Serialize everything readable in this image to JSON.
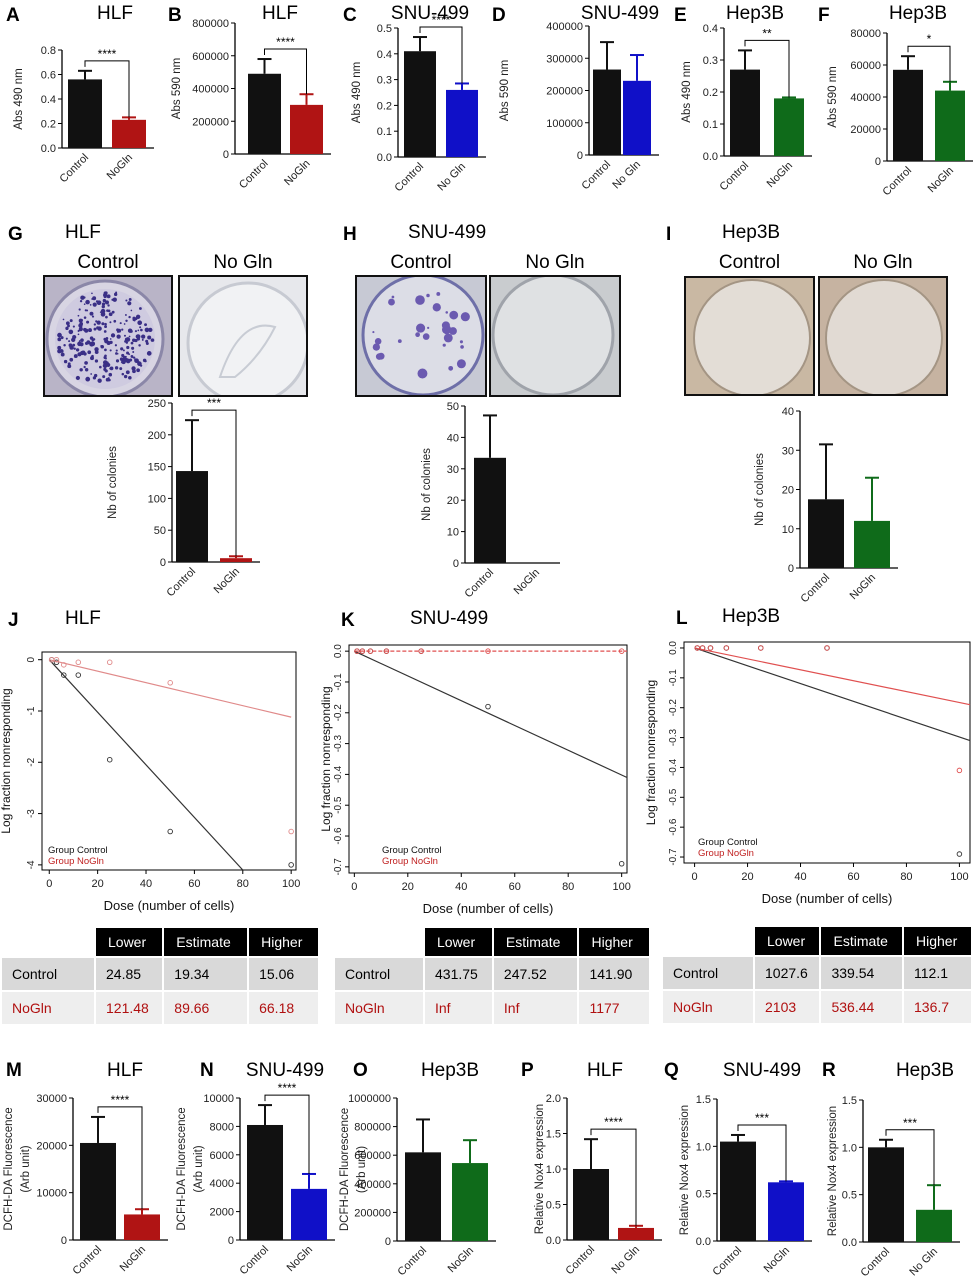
{
  "colors": {
    "black": "#111111",
    "red": "#b01414",
    "blue": "#1010c8",
    "green": "#0f6b1a",
    "lightred": "#e08a8a"
  },
  "top_row": [
    {
      "letter": "A",
      "title": "HLF",
      "ylabel": "Abs 490 nm",
      "ticks": [
        "0.0",
        "0.2",
        "0.4",
        "0.6",
        "0.8"
      ],
      "cats": [
        "Control",
        "NoGln"
      ],
      "sig": "****"
    },
    {
      "letter": "B",
      "title": "HLF",
      "ylabel": "Abs 590 nm",
      "ticks": [
        "0",
        "200000",
        "400000",
        "600000",
        "800000"
      ],
      "cats": [
        "Control",
        "NoGln"
      ],
      "sig": "****"
    },
    {
      "letter": "C",
      "title": "SNU-499",
      "ylabel": "Abs 490 nm",
      "ticks": [
        "0.0",
        "0.1",
        "0.2",
        "0.3",
        "0.4",
        "0.5"
      ],
      "cats": [
        "Control",
        "No Gln"
      ],
      "sig": "****"
    },
    {
      "letter": "D",
      "title": "SNU-499",
      "ylabel": "Abs 590 nm",
      "ticks": [
        "0",
        "100000",
        "200000",
        "300000",
        "400000"
      ],
      "cats": [
        "Control",
        "No Gln"
      ],
      "sig": ""
    },
    {
      "letter": "E",
      "title": "Hep3B",
      "ylabel": "Abs 490 nm",
      "ticks": [
        "0.0",
        "0.1",
        "0.2",
        "0.3",
        "0.4"
      ],
      "cats": [
        "Control",
        "NoGln"
      ],
      "sig": "**"
    },
    {
      "letter": "F",
      "title": "Hep3B",
      "ylabel": "Abs 590 nm",
      "ticks": [
        "0",
        "20000",
        "40000",
        "60000",
        "80000"
      ],
      "cats": [
        "Control",
        "NoGln"
      ],
      "sig": "*"
    }
  ],
  "colony": [
    {
      "letter": "G",
      "title": "HLF",
      "left_label": "Control",
      "right_label": "No Gln",
      "ylabel": "Nb of colonies",
      "ticks": [
        "0",
        "50",
        "100",
        "150",
        "200",
        "250"
      ],
      "cats": [
        "Control",
        "NoGln"
      ],
      "sig": "***"
    },
    {
      "letter": "H",
      "title": "SNU-499",
      "left_label": "Control",
      "right_label": "No Gln",
      "ylabel": "Nb of colonies",
      "ticks": [
        "0",
        "10",
        "20",
        "30",
        "40",
        "50"
      ],
      "cats": [
        "Control",
        "NoGln"
      ],
      "sig": ""
    },
    {
      "letter": "I",
      "title": "Hep3B",
      "left_label": "Control",
      "right_label": "No Gln",
      "ylabel": "Nb of colonies",
      "ticks": [
        "0",
        "10",
        "20",
        "30",
        "40"
      ],
      "cats": [
        "Control",
        "NoGln"
      ],
      "sig": ""
    }
  ],
  "lda": [
    {
      "letter": "J",
      "title": "HLF",
      "ylabel": "Log fraction nonresponding",
      "xlabel": "Dose (number of cells)",
      "yticks": [
        "0",
        "-1",
        "-2",
        "-3",
        "-4"
      ],
      "xticks": [
        "0",
        "20",
        "40",
        "60",
        "80",
        "100"
      ],
      "legend": [
        "Group Control",
        "Group NoGln"
      ]
    },
    {
      "letter": "K",
      "title": "SNU-499",
      "ylabel": "Log fraction nonresponding",
      "xlabel": "Dose (number of cells)",
      "yticks": [
        "0.0",
        "-0.1",
        "-0.2",
        "-0.3",
        "-0.4",
        "-0.5",
        "-0.6",
        "-0.7"
      ],
      "xticks": [
        "0",
        "20",
        "40",
        "60",
        "80",
        "100"
      ],
      "legend": [
        "Group Control",
        "Group NoGln"
      ]
    },
    {
      "letter": "L",
      "title": "Hep3B",
      "ylabel": "Log fraction nonresponding",
      "xlabel": "Dose (number of cells)",
      "yticks": [
        "0.0",
        "-0.1",
        "-0.2",
        "-0.3",
        "-0.4",
        "-0.5",
        "-0.6",
        "-0.7"
      ],
      "xticks": [
        "0",
        "20",
        "40",
        "60",
        "80",
        "100"
      ],
      "legend": [
        "Group Control",
        "Group NoGln"
      ]
    }
  ],
  "tables": [
    {
      "headers": [
        "Lower",
        "Estimate",
        "Higher"
      ],
      "rows": [
        {
          "label": "Control",
          "vals": [
            "24.85",
            "19.34",
            "15.06"
          ]
        },
        {
          "label": "NoGln",
          "vals": [
            "121.48",
            "89.66",
            "66.18"
          ]
        }
      ]
    },
    {
      "headers": [
        "Lower",
        "Estimate",
        "Higher"
      ],
      "rows": [
        {
          "label": "Control",
          "vals": [
            "431.75",
            "247.52",
            "141.90"
          ]
        },
        {
          "label": "NoGln",
          "vals": [
            "Inf",
            "Inf",
            "1177"
          ]
        }
      ]
    },
    {
      "headers": [
        "Lower",
        "Estimate",
        "Higher"
      ],
      "rows": [
        {
          "label": "Control",
          "vals": [
            "1027.6",
            "339.54",
            "112.1"
          ]
        },
        {
          "label": "NoGln",
          "vals": [
            "2103",
            "536.44",
            "136.7"
          ]
        }
      ]
    }
  ],
  "bottom_row": [
    {
      "letter": "M",
      "title": "HLF",
      "ylabel": "DCFH-DA Fluorescence",
      "ylabel2": "(Arb unit)",
      "ticks": [
        "0",
        "10000",
        "20000",
        "30000"
      ],
      "cats": [
        "Control",
        "NoGln"
      ],
      "sig": "****"
    },
    {
      "letter": "N",
      "title": "SNU-499",
      "ylabel": "DCFH-DA Fluorescence",
      "ylabel2": "(Arb unit)",
      "ticks": [
        "0",
        "2000",
        "4000",
        "6000",
        "8000",
        "10000"
      ],
      "cats": [
        "Control",
        "NoGln"
      ],
      "sig": "****"
    },
    {
      "letter": "O",
      "title": "Hep3B",
      "ylabel": "DCFH-DA Fluorescence",
      "ylabel2": "(Arb unit)",
      "ticks": [
        "0",
        "200000",
        "400000",
        "600000",
        "800000",
        "1000000"
      ],
      "cats": [
        "Control",
        "NoGln"
      ],
      "sig": ""
    },
    {
      "letter": "P",
      "title": "HLF",
      "ylabel": "Relative Nox4 expression",
      "ylabel2": "",
      "ticks": [
        "0.0",
        "0.5",
        "1.0",
        "1.5",
        "2.0"
      ],
      "cats": [
        "Control",
        "No Gln"
      ],
      "sig": "****"
    },
    {
      "letter": "Q",
      "title": "SNU-499",
      "ylabel": "Relative Nox4 expression",
      "ylabel2": "",
      "ticks": [
        "0.0",
        "0.5",
        "1.0",
        "1.5"
      ],
      "cats": [
        "Control",
        "NoGln"
      ],
      "sig": "***"
    },
    {
      "letter": "R",
      "title": "Hep3B",
      "ylabel": "Relative Nox4 expression",
      "ylabel2": "",
      "ticks": [
        "0.0",
        "0.5",
        "1.0",
        "1.5"
      ],
      "cats": [
        "Control",
        "No Gln"
      ],
      "sig": "***"
    }
  ],
  "chart_data": [
    {
      "type": "bar",
      "id": "A",
      "title": "HLF",
      "ylabel": "Abs 490 nm",
      "categories": [
        "Control",
        "NoGln"
      ],
      "values": [
        0.56,
        0.23
      ],
      "errors": [
        0.07,
        0.02
      ],
      "ylim": [
        0,
        0.8
      ],
      "colors": [
        "#111111",
        "#b01414"
      ]
    },
    {
      "type": "bar",
      "id": "B",
      "title": "HLF",
      "ylabel": "Abs 590 nm",
      "categories": [
        "Control",
        "NoGln"
      ],
      "values": [
        490000,
        300000
      ],
      "errors": [
        90000,
        65000
      ],
      "ylim": [
        0,
        800000
      ],
      "colors": [
        "#111111",
        "#b01414"
      ]
    },
    {
      "type": "bar",
      "id": "C",
      "title": "SNU-499",
      "ylabel": "Abs 490 nm",
      "categories": [
        "Control",
        "No Gln"
      ],
      "values": [
        0.41,
        0.26
      ],
      "errors": [
        0.055,
        0.025
      ],
      "ylim": [
        0,
        0.5
      ],
      "colors": [
        "#111111",
        "#1010c8"
      ]
    },
    {
      "type": "bar",
      "id": "D",
      "title": "SNU-499",
      "ylabel": "Abs 590 nm",
      "categories": [
        "Control",
        "No Gln"
      ],
      "values": [
        265000,
        230000
      ],
      "errors": [
        85000,
        80000
      ],
      "ylim": [
        0,
        400000
      ],
      "colors": [
        "#111111",
        "#1010c8"
      ]
    },
    {
      "type": "bar",
      "id": "E",
      "title": "Hep3B",
      "ylabel": "Abs 490 nm",
      "categories": [
        "Control",
        "NoGln"
      ],
      "values": [
        0.27,
        0.18
      ],
      "errors": [
        0.06,
        0.003
      ],
      "ylim": [
        0,
        0.4
      ],
      "colors": [
        "#111111",
        "#0f6b1a"
      ]
    },
    {
      "type": "bar",
      "id": "F",
      "title": "Hep3B",
      "ylabel": "Abs 590 nm",
      "categories": [
        "Control",
        "NoGln"
      ],
      "values": [
        57000,
        44000
      ],
      "errors": [
        8500,
        5500
      ],
      "ylim": [
        0,
        80000
      ],
      "colors": [
        "#111111",
        "#0f6b1a"
      ]
    },
    {
      "type": "bar",
      "id": "G",
      "title": "HLF",
      "ylabel": "Nb of colonies",
      "categories": [
        "Control",
        "NoGln"
      ],
      "values": [
        143,
        6
      ],
      "errors": [
        80,
        3
      ],
      "ylim": [
        0,
        250
      ],
      "colors": [
        "#111111",
        "#b01414"
      ]
    },
    {
      "type": "bar",
      "id": "H",
      "title": "SNU-499",
      "ylabel": "Nb of colonies",
      "categories": [
        "Control",
        "NoGln"
      ],
      "values": [
        33.5,
        0
      ],
      "errors": [
        13.5,
        0
      ],
      "ylim": [
        0,
        50
      ],
      "colors": [
        "#111111",
        "#1010c8"
      ]
    },
    {
      "type": "bar",
      "id": "I",
      "title": "Hep3B",
      "ylabel": "Nb of colonies",
      "categories": [
        "Control",
        "NoGln"
      ],
      "values": [
        17.5,
        12
      ],
      "errors": [
        14,
        11
      ],
      "ylim": [
        0,
        40
      ],
      "colors": [
        "#111111",
        "#0f6b1a"
      ]
    },
    {
      "type": "scatter",
      "id": "J",
      "title": "HLF",
      "xlabel": "Dose (number of cells)",
      "ylabel": "Log fraction nonresponding",
      "xlim": [
        -3,
        102
      ],
      "ylim": [
        -4.1,
        0.15
      ],
      "series": [
        {
          "name": "Group Control",
          "color": "#333333",
          "points": [
            [
              1,
              0
            ],
            [
              3,
              -0.05
            ],
            [
              6,
              -0.3
            ],
            [
              12,
              -0.3
            ],
            [
              25,
              -1.95
            ],
            [
              50,
              -3.35
            ],
            [
              100,
              -4.0
            ]
          ],
          "line": [
            [
              0,
              0
            ],
            [
              80,
              -4.1
            ]
          ]
        },
        {
          "name": "Group NoGln",
          "color": "#e08a8a",
          "points": [
            [
              1,
              0
            ],
            [
              3,
              0
            ],
            [
              6,
              -0.1
            ],
            [
              12,
              -0.05
            ],
            [
              25,
              -0.05
            ],
            [
              50,
              -0.45
            ],
            [
              100,
              -3.35
            ]
          ],
          "line": [
            [
              0,
              0
            ],
            [
              100,
              -1.12
            ]
          ]
        }
      ]
    },
    {
      "type": "scatter",
      "id": "K",
      "title": "SNU-499",
      "xlabel": "Dose (number of cells)",
      "ylabel": "Log fraction nonresponding",
      "xlim": [
        -2,
        102
      ],
      "ylim": [
        -0.72,
        0.02
      ],
      "series": [
        {
          "name": "Group Control",
          "color": "#333333",
          "points": [
            [
              1,
              0
            ],
            [
              3,
              0
            ],
            [
              6,
              0
            ],
            [
              12,
              0
            ],
            [
              25,
              0
            ],
            [
              50,
              -0.18
            ],
            [
              100,
              -0.69
            ]
          ],
          "line": [
            [
              0,
              0
            ],
            [
              102,
              -0.41
            ]
          ]
        },
        {
          "name": "Group NoGln",
          "color": "#e05050",
          "points": [
            [
              1,
              0
            ],
            [
              3,
              0
            ],
            [
              6,
              0
            ],
            [
              12,
              0
            ],
            [
              25,
              0
            ],
            [
              50,
              0
            ],
            [
              100,
              0
            ]
          ],
          "line": [
            [
              0,
              0
            ],
            [
              102,
              0
            ]
          ]
        }
      ]
    },
    {
      "type": "scatter",
      "id": "L",
      "title": "Hep3B",
      "xlabel": "Dose (number of cells)",
      "ylabel": "Log fraction nonresponding",
      "xlim": [
        -4,
        104
      ],
      "ylim": [
        -0.72,
        0.02
      ],
      "series": [
        {
          "name": "Group Control",
          "color": "#333333",
          "points": [
            [
              1,
              0
            ],
            [
              3,
              0
            ],
            [
              6,
              0
            ],
            [
              12,
              0
            ],
            [
              25,
              0
            ],
            [
              50,
              0
            ],
            [
              100,
              -0.69
            ]
          ],
          "line": [
            [
              0,
              0
            ],
            [
              104,
              -0.31
            ]
          ]
        },
        {
          "name": "Group NoGln",
          "color": "#e05050",
          "points": [
            [
              1,
              0
            ],
            [
              3,
              0
            ],
            [
              6,
              0
            ],
            [
              12,
              0
            ],
            [
              25,
              0
            ],
            [
              50,
              0
            ],
            [
              100,
              -0.41
            ]
          ],
          "line": [
            [
              0,
              0
            ],
            [
              104,
              -0.19
            ]
          ]
        }
      ]
    },
    {
      "type": "bar",
      "id": "M",
      "title": "HLF",
      "ylabel": "DCFH-DA Fluorescence (Arb unit)",
      "categories": [
        "Control",
        "NoGln"
      ],
      "values": [
        20500,
        5400
      ],
      "errors": [
        5500,
        1100
      ],
      "ylim": [
        0,
        30000
      ],
      "colors": [
        "#111111",
        "#b01414"
      ]
    },
    {
      "type": "bar",
      "id": "N",
      "title": "SNU-499",
      "ylabel": "DCFH-DA Fluorescence (Arb unit)",
      "categories": [
        "Control",
        "NoGln"
      ],
      "values": [
        8100,
        3600
      ],
      "errors": [
        1400,
        1050
      ],
      "ylim": [
        0,
        10000
      ],
      "colors": [
        "#111111",
        "#1010c8"
      ]
    },
    {
      "type": "bar",
      "id": "O",
      "title": "Hep3B",
      "ylabel": "DCFH-DA Fluorescence (Arb unit)",
      "categories": [
        "Control",
        "NoGln"
      ],
      "values": [
        620000,
        545000
      ],
      "errors": [
        230000,
        160000
      ],
      "ylim": [
        0,
        1000000
      ],
      "colors": [
        "#111111",
        "#0f6b1a"
      ]
    },
    {
      "type": "bar",
      "id": "P",
      "title": "HLF",
      "ylabel": "Relative Nox4 expression",
      "categories": [
        "Control",
        "No Gln"
      ],
      "values": [
        1.0,
        0.17
      ],
      "errors": [
        0.42,
        0.03
      ],
      "ylim": [
        0,
        2
      ],
      "colors": [
        "#111111",
        "#b01414"
      ]
    },
    {
      "type": "bar",
      "id": "Q",
      "title": "SNU-499",
      "ylabel": "Relative Nox4 expression",
      "categories": [
        "Control",
        "NoGln"
      ],
      "values": [
        1.05,
        0.62
      ],
      "errors": [
        0.07,
        0.01
      ],
      "ylim": [
        0,
        1.5
      ],
      "colors": [
        "#111111",
        "#1010c8"
      ]
    },
    {
      "type": "bar",
      "id": "R",
      "title": "Hep3B",
      "ylabel": "Relative Nox4 expression",
      "categories": [
        "Control",
        "No Gln"
      ],
      "values": [
        1.0,
        0.34
      ],
      "errors": [
        0.08,
        0.26
      ],
      "ylim": [
        0,
        1.5
      ],
      "colors": [
        "#111111",
        "#0f6b1a"
      ]
    }
  ]
}
